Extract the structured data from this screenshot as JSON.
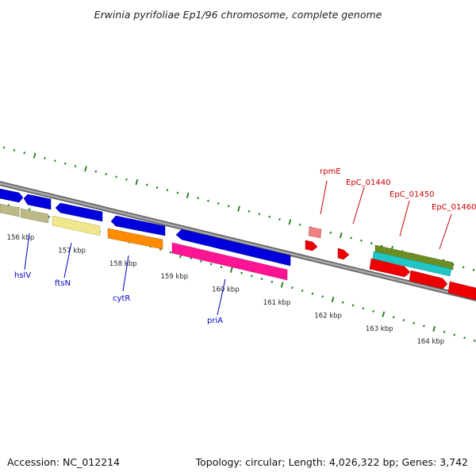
{
  "title": "Erwinia pyrifoliae Ep1/96 chromosome, complete genome",
  "footer": {
    "accession": "Accession: NC_012214",
    "summary": "Topology: circular; Length: 4,026,322 bp; Genes: 3,742"
  },
  "colors": {
    "backbone": "#8a8a8a",
    "tick": "#1a7a1a",
    "forward_label": "#cc0000",
    "reverse_label": "#0000cc"
  },
  "ticks": [
    {
      "label": "156 kbp",
      "kbp": 156
    },
    {
      "label": "157 kbp",
      "kbp": 157
    },
    {
      "label": "158 kbp",
      "kbp": 158
    },
    {
      "label": "159 kbp",
      "kbp": 159
    },
    {
      "label": "160 kbp",
      "kbp": 160
    },
    {
      "label": "161 kbp",
      "kbp": 161
    },
    {
      "label": "162 kbp",
      "kbp": 162
    },
    {
      "label": "163 kbp",
      "kbp": 163
    },
    {
      "label": "164 kbp",
      "kbp": 164
    }
  ],
  "genes": [
    {
      "name": "hslV",
      "strand": "reverse"
    },
    {
      "name": "ftsN",
      "strand": "reverse"
    },
    {
      "name": "cytR",
      "strand": "reverse"
    },
    {
      "name": "priA",
      "strand": "reverse"
    },
    {
      "name": "rpmE",
      "strand": "forward"
    },
    {
      "name": "EpC_01440",
      "strand": "forward"
    },
    {
      "name": "EpC_01450",
      "strand": "forward"
    },
    {
      "name": "EpC_01460",
      "strand": "forward"
    }
  ]
}
